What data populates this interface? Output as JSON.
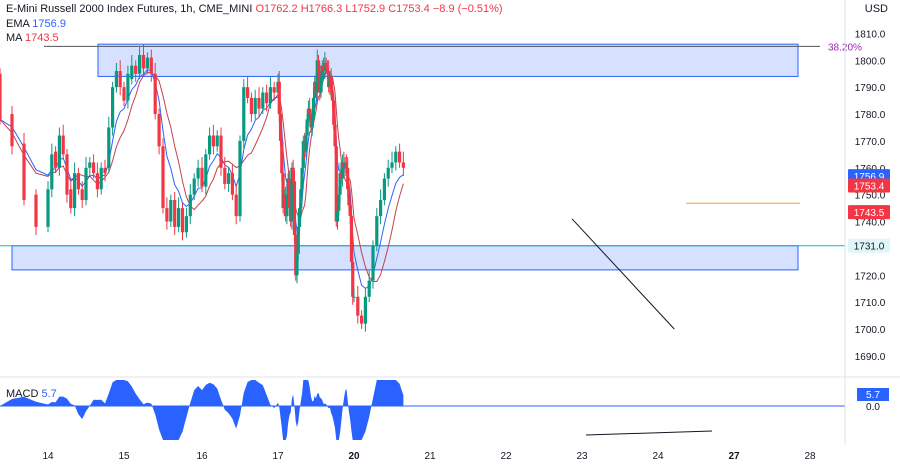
{
  "header": {
    "symbol": "E-Mini Russell 2000 Index Futures, 1h, CME_MINI",
    "open": "O1762.2",
    "high": "H1766.3",
    "low": "L1752.9",
    "close": "C1753.4",
    "change": "−8.9 (−0.51%)",
    "ema_label": "EMA",
    "ema_value": "1756.9",
    "ma_label": "MA",
    "ma_value": "1743.5",
    "currency": "USD"
  },
  "macd": {
    "label": "MACD",
    "value": "5.7"
  },
  "colors": {
    "up": "#089981",
    "down": "#f23645",
    "ema": "#2962ff",
    "ma": "#c2414a",
    "zone_fill": "#d6e0ff",
    "zone_stroke": "#2962ff",
    "support_line": "#00bcd4",
    "fib_level": "#9c27b0",
    "macd_fill": "#2962ff",
    "orange_line": "#f7a600"
  },
  "chart_data": {
    "type": "candlestick",
    "y_axis": {
      "range": [
        1684,
        1815
      ],
      "ticks": [
        1690.0,
        1700.0,
        1710.0,
        1720.0,
        1730.0,
        1740.0,
        1750.0,
        1760.0,
        1770.0,
        1780.0,
        1790.0,
        1800.0,
        1810.0
      ],
      "tick_labels": [
        "1690.0",
        "1700.0",
        "1710.0",
        "1720.0",
        "1730.0",
        "1740.0",
        "1750.0",
        "1760.0",
        "1770.0",
        "1780.0",
        "1790.0",
        "1800.0",
        "1810.0"
      ]
    },
    "x_axis": {
      "labels": [
        "14",
        "15",
        "16",
        "17",
        "20",
        "21",
        "22",
        "23",
        "24",
        "27",
        "28"
      ],
      "bold": [
        "20",
        "27"
      ]
    },
    "price_labels": [
      {
        "text": "1756.9",
        "value": 1756.9,
        "kind": "ema"
      },
      {
        "text": "1753.4",
        "value": 1753.4,
        "kind": "close"
      },
      {
        "text": "1743.5",
        "value": 1743.5,
        "kind": "ma"
      },
      {
        "text": "1731.0",
        "value": 1731.0,
        "kind": "support"
      }
    ],
    "resistance_zone": [
      1794,
      1806
    ],
    "support_zone": [
      1722,
      1731
    ],
    "support_line": 1731.0,
    "fib_level": {
      "label": "38.20%",
      "value": 1805.2
    },
    "orange_level": 1746.8,
    "trendline": {
      "from": [
        23.0,
        1741
      ],
      "to": [
        24.8,
        1700
      ]
    },
    "candles": [
      [
        13.8,
        1795,
        1778
      ],
      [
        13.85,
        1780,
        1768
      ],
      [
        13.9,
        1769,
        1748
      ],
      [
        13.95,
        1750,
        1738
      ],
      [
        14.0,
        1738,
        1752
      ],
      [
        14.05,
        1752,
        1765
      ],
      [
        14.1,
        1766,
        1760
      ],
      [
        14.15,
        1760,
        1772
      ],
      [
        14.2,
        1772,
        1765
      ],
      [
        14.25,
        1765,
        1750
      ],
      [
        14.3,
        1752,
        1745
      ],
      [
        14.35,
        1745,
        1758
      ],
      [
        14.4,
        1758,
        1752
      ],
      [
        14.45,
        1752,
        1748
      ],
      [
        14.5,
        1748,
        1760
      ],
      [
        14.55,
        1760,
        1762
      ],
      [
        14.6,
        1762,
        1758
      ],
      [
        14.65,
        1758,
        1752
      ],
      [
        14.7,
        1752,
        1760
      ],
      [
        14.75,
        1760,
        1758
      ],
      [
        14.8,
        1760,
        1775
      ],
      [
        14.85,
        1775,
        1790
      ],
      [
        14.9,
        1790,
        1796
      ],
      [
        14.95,
        1796,
        1790
      ],
      [
        15.0,
        1790,
        1785
      ],
      [
        15.05,
        1785,
        1795
      ],
      [
        15.1,
        1793,
        1798
      ],
      [
        15.15,
        1798,
        1795
      ],
      [
        15.2,
        1795,
        1802
      ],
      [
        15.25,
        1802,
        1797
      ],
      [
        15.3,
        1797,
        1801
      ],
      [
        15.35,
        1801,
        1795
      ],
      [
        15.4,
        1795,
        1780
      ],
      [
        15.45,
        1780,
        1768
      ],
      [
        15.5,
        1768,
        1745
      ],
      [
        15.55,
        1745,
        1740
      ],
      [
        15.6,
        1740,
        1748
      ],
      [
        15.65,
        1748,
        1738
      ],
      [
        15.7,
        1738,
        1745
      ],
      [
        15.75,
        1745,
        1736
      ],
      [
        15.8,
        1736,
        1742
      ],
      [
        15.85,
        1742,
        1750
      ],
      [
        15.9,
        1750,
        1756
      ],
      [
        15.95,
        1756,
        1760
      ],
      [
        16.0,
        1760,
        1753
      ],
      [
        16.05,
        1753,
        1765
      ],
      [
        16.1,
        1765,
        1772
      ],
      [
        16.15,
        1772,
        1768
      ],
      [
        16.2,
        1768,
        1772
      ],
      [
        16.25,
        1772,
        1760
      ],
      [
        16.3,
        1760,
        1754
      ],
      [
        16.35,
        1754,
        1758
      ],
      [
        16.4,
        1758,
        1750
      ],
      [
        16.45,
        1750,
        1742
      ],
      [
        16.5,
        1742,
        1770
      ],
      [
        16.55,
        1770,
        1790
      ],
      [
        16.6,
        1790,
        1786
      ],
      [
        16.65,
        1786,
        1780
      ],
      [
        16.7,
        1780,
        1786
      ],
      [
        16.75,
        1786,
        1782
      ],
      [
        16.8,
        1782,
        1788
      ],
      [
        16.85,
        1788,
        1784
      ],
      [
        16.9,
        1784,
        1790
      ],
      [
        16.95,
        1790,
        1788
      ],
      [
        17.0,
        1788,
        1792
      ],
      [
        17.05,
        1792,
        1780
      ],
      [
        17.1,
        1780,
        1770
      ],
      [
        17.15,
        1770,
        1758
      ],
      [
        17.2,
        1758,
        1745
      ],
      [
        17.25,
        1745,
        1750
      ],
      [
        17.3,
        1750,
        1742
      ],
      [
        17.35,
        1742,
        1750
      ],
      [
        17.4,
        1750,
        1756
      ],
      [
        17.45,
        1756,
        1745
      ],
      [
        17.5,
        1745,
        1740
      ],
      [
        17.55,
        1740,
        1760
      ],
      [
        17.6,
        1760,
        1755
      ],
      [
        17.65,
        1755,
        1735
      ],
      [
        17.7,
        1735,
        1720
      ],
      [
        17.75,
        1720,
        1728
      ],
      [
        17.8,
        1728,
        1738
      ],
      [
        17.85,
        1738,
        1745
      ],
      [
        17.9,
        1745,
        1752
      ],
      [
        17.95,
        1752,
        1760
      ],
      [
        18.0,
        1760,
        1770
      ],
      [
        18.05,
        1770,
        1766
      ],
      [
        18.1,
        1766,
        1772
      ],
      [
        18.15,
        1772,
        1778
      ],
      [
        18.2,
        1778,
        1782
      ],
      [
        18.25,
        1782,
        1780
      ],
      [
        18.3,
        1780,
        1775
      ],
      [
        18.35,
        1775,
        1778
      ],
      [
        18.4,
        1778,
        1786
      ],
      [
        18.45,
        1786,
        1792
      ],
      [
        18.5,
        1792,
        1788
      ],
      [
        18.55,
        1788,
        1800
      ],
      [
        18.6,
        1800,
        1796
      ],
      [
        18.65,
        1796,
        1788
      ],
      [
        18.7,
        1788,
        1794
      ],
      [
        18.75,
        1794,
        1798
      ],
      [
        18.8,
        1798,
        1796
      ],
      [
        18.85,
        1796,
        1799
      ],
      [
        18.9,
        1799,
        1797
      ],
      [
        18.95,
        1797,
        1796
      ],
      [
        19.0,
        1796,
        1790
      ],
      [
        19.05,
        1790,
        1794
      ],
      [
        19.1,
        1794,
        1788
      ],
      [
        19.15,
        1788,
        1785
      ],
      [
        19.2,
        1785,
        1776
      ],
      [
        19.25,
        1776,
        1768
      ],
      [
        19.3,
        1768,
        1740
      ],
      [
        19.35,
        1740,
        1744
      ],
      [
        19.4,
        1744,
        1750
      ],
      [
        19.45,
        1750,
        1758
      ],
      [
        19.5,
        1758,
        1756
      ],
      [
        19.55,
        1756,
        1762
      ],
      [
        19.6,
        1762,
        1760
      ],
      [
        19.65,
        1760,
        1762
      ],
      [
        19.7,
        1762,
        1760
      ],
      [
        19.75,
        1760,
        1752
      ],
      [
        19.8,
        1752,
        1746
      ],
      [
        19.85,
        1746,
        1742
      ],
      [
        19.9,
        1742,
        1725
      ],
      [
        19.95,
        1725,
        1712
      ],
      [
        20.0,
        1712,
        1712
      ],
      [
        20.05,
        1712,
        1705
      ],
      [
        20.1,
        1705,
        1702
      ],
      [
        20.15,
        1702,
        1712
      ],
      [
        20.2,
        1712,
        1718
      ],
      [
        20.25,
        1718,
        1731
      ],
      [
        20.3,
        1731,
        1742
      ],
      [
        20.35,
        1742,
        1748
      ],
      [
        20.4,
        1748,
        1756
      ],
      [
        20.45,
        1756,
        1760
      ],
      [
        20.5,
        1760,
        1762
      ],
      [
        20.55,
        1762,
        1766
      ],
      [
        20.6,
        1766,
        1762
      ],
      [
        20.65,
        1762,
        1760
      ]
    ],
    "macd_axis": {
      "tick_labels": [
        "5.7",
        "0.0"
      ]
    }
  }
}
